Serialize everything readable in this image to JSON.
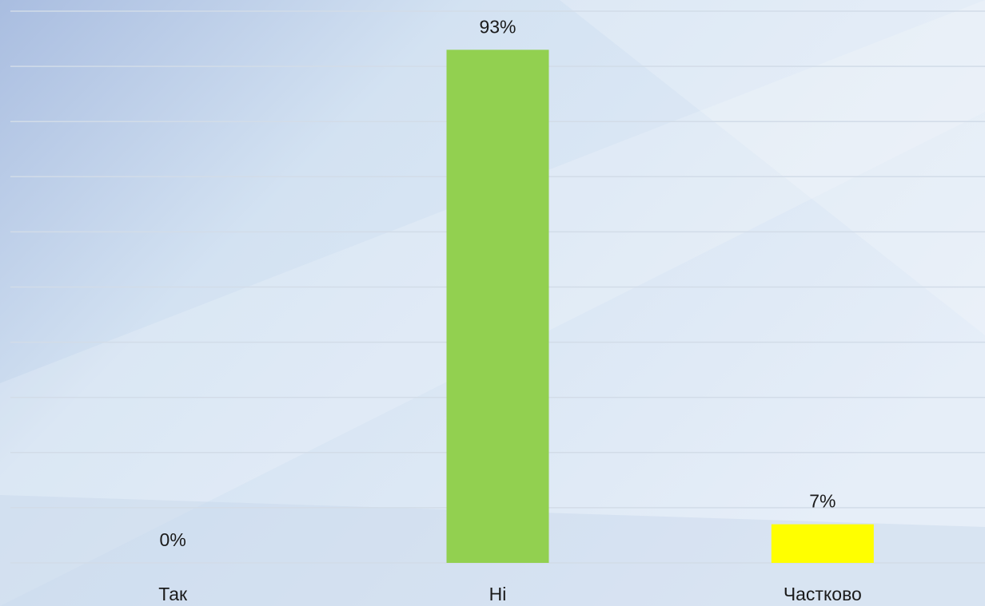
{
  "chart_data": {
    "type": "bar",
    "categories": [
      "Так",
      "Ні",
      "Частково"
    ],
    "values": [
      0,
      93,
      7
    ],
    "value_labels": [
      "0%",
      "93%",
      "7%"
    ],
    "colors": [
      "#4f81bd",
      "#92d050",
      "#ffff00"
    ],
    "ylim": [
      0,
      100
    ],
    "yticks": [
      0,
      10,
      20,
      30,
      40,
      50,
      60,
      70,
      80,
      90,
      100
    ],
    "grid": true
  }
}
